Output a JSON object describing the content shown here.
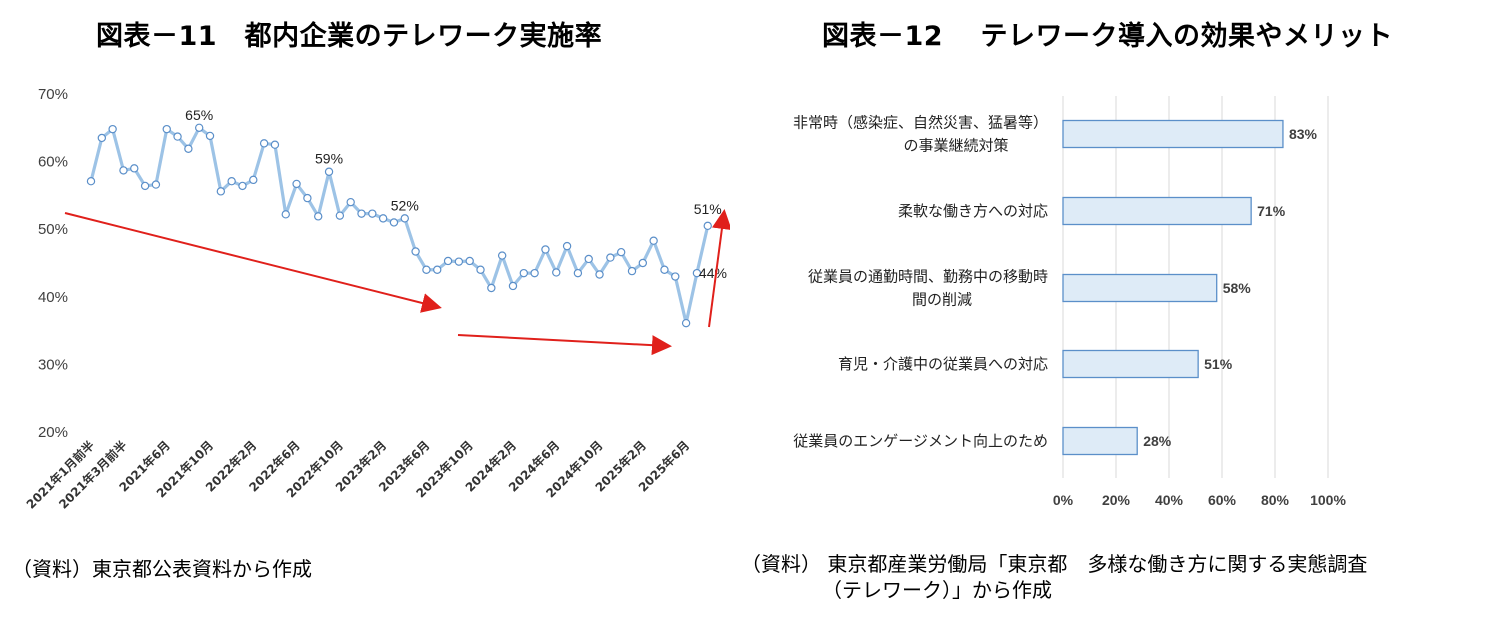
{
  "titles": {
    "fig11": "図表－11　都内企業のテレワーク実施率",
    "fig12": "図表－12　 テレワーク導入の効果やメリット"
  },
  "sources": {
    "fig11": "（資料）東京都公表資料から作成",
    "fig12_line1": "（資料） 東京都産業労働局「東京都　多様な働き方に関する実態調査",
    "fig12_line2": "（テレワーク）」から作成"
  },
  "colors": {
    "line": "#9dc3e6",
    "marker_fill": "#ffffff",
    "marker_stroke": "#5b8fc9",
    "bar_fill": "#deebf7",
    "bar_stroke": "#5b8fc9",
    "arrow": "#e0201b",
    "grid": "#d9d9d9"
  },
  "chart_data": [
    {
      "type": "line",
      "y_ticks": [
        "20%",
        "30%",
        "40%",
        "50%",
        "60%",
        "70%"
      ],
      "ylim": [
        20,
        70
      ],
      "x_labels": [
        "2021年1月前半",
        "2021年3月前半",
        "2021年6月",
        "2021年10月",
        "2022年2月",
        "2022年6月",
        "2022年10月",
        "2023年2月",
        "2023年6月",
        "2023年10月",
        "2024年2月",
        "2024年6月",
        "2024年10月",
        "2025年2月",
        "2025年6月"
      ],
      "x_label_positions": [
        0,
        3,
        7,
        11,
        15,
        19,
        23,
        27,
        31,
        35,
        39,
        43,
        47,
        51,
        55
      ],
      "values": [
        57.1,
        63.5,
        64.8,
        58.7,
        59.0,
        56.4,
        56.6,
        64.8,
        63.7,
        61.9,
        65.0,
        63.8,
        55.6,
        57.1,
        56.4,
        57.3,
        62.7,
        62.5,
        52.2,
        56.7,
        54.6,
        51.9,
        58.5,
        52.0,
        54.0,
        52.3,
        52.3,
        51.6,
        51.0,
        51.6,
        46.7,
        44.0,
        44.0,
        45.3,
        45.2,
        45.3,
        44.0,
        41.3,
        46.1,
        41.6,
        43.5,
        43.5,
        47.0,
        43.6,
        47.5,
        43.5,
        45.6,
        43.3,
        45.8,
        46.6,
        43.8,
        45.0,
        48.3,
        44.0,
        43.0,
        36.1,
        43.5,
        50.5
      ],
      "annotations": [
        {
          "index": 10,
          "text": "65%"
        },
        {
          "index": 22,
          "text": "59%"
        },
        {
          "index": 29,
          "text": "52%"
        },
        {
          "index": 57,
          "text": "51%"
        },
        {
          "index": 56,
          "text": "44%"
        }
      ]
    },
    {
      "type": "bar",
      "orientation": "horizontal",
      "categories": [
        [
          "非常時（感染症、自然災害、猛暑等）",
          "の事業継続対策"
        ],
        [
          "柔軟な働き方への対応"
        ],
        [
          "従業員の通勤時間、勤務中の移動時",
          "間の削減"
        ],
        [
          "育児・介護中の従業員への対応"
        ],
        [
          "従業員のエンゲージメント向上のため"
        ]
      ],
      "values": [
        83,
        71,
        58,
        51,
        28
      ],
      "value_labels": [
        "83%",
        "71%",
        "58%",
        "51%",
        "28%"
      ],
      "x_ticks": [
        "0%",
        "20%",
        "40%",
        "60%",
        "80%",
        "100%"
      ],
      "xlim": [
        0,
        100
      ]
    }
  ]
}
